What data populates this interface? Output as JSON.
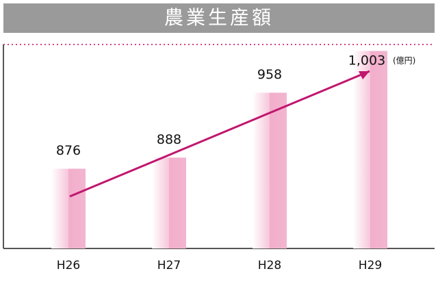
{
  "chart_data": {
    "type": "bar",
    "title": "農業生産額",
    "unit": "(億円)",
    "categories": [
      "H26",
      "H27",
      "H28",
      "H29"
    ],
    "values": [
      876,
      888,
      958,
      1003
    ],
    "value_labels": [
      "876",
      "888",
      "958",
      "1,003"
    ],
    "color": "#f2aecb",
    "ylim": [
      790,
      1010
    ]
  }
}
